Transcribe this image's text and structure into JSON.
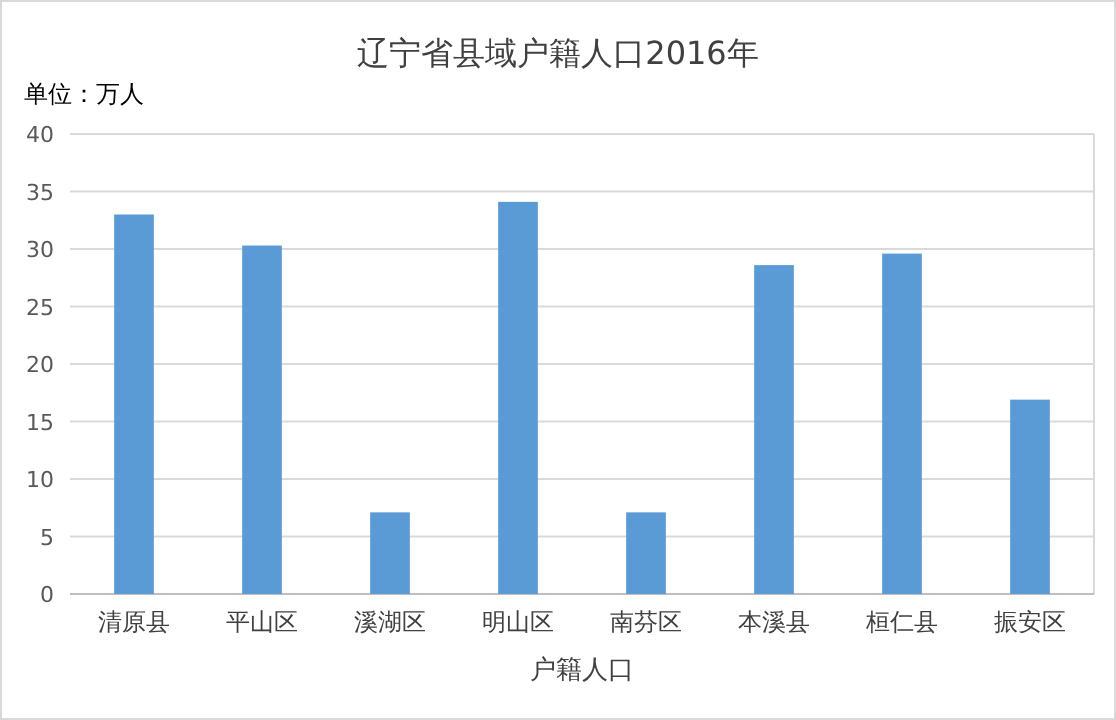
{
  "chart_data": {
    "type": "bar",
    "title": "辽宁省县域户籍人口2016年",
    "xlabel": "户籍人口",
    "annotations": [
      "单位：万人"
    ],
    "categories": [
      "清原县",
      "平山区",
      "溪湖区",
      "明山区",
      "南芬区",
      "本溪县",
      "桓仁县",
      "振安区"
    ],
    "values": [
      33.0,
      30.3,
      7.1,
      34.1,
      7.1,
      28.6,
      29.6,
      16.9
    ],
    "color": "#5b9bd5",
    "ylim": [
      0,
      40
    ],
    "yticks": [
      0,
      5,
      10,
      15,
      20,
      25,
      30,
      35,
      40
    ],
    "grid": "y"
  }
}
